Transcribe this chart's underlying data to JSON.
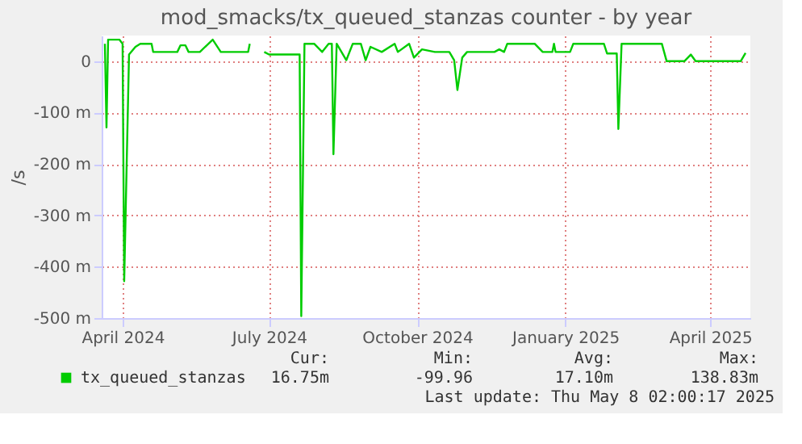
{
  "chart_data": {
    "type": "line",
    "title": "mod_smacks/tx_queued_stanzas counter - by year",
    "ylabel": "/s",
    "x": [
      "2024-03-21",
      "2024-03-22",
      "2024-03-23",
      "2024-03-30",
      "2024-04-01",
      "2024-04-02",
      "2024-04-05",
      "2024-04-09",
      "2024-04-12",
      "2024-04-19",
      "2024-04-20",
      "2024-05-05",
      "2024-05-07",
      "2024-05-10",
      "2024-05-12",
      "2024-05-19",
      "2024-05-27",
      "2024-06-01",
      "2024-06-18",
      "2024-06-19",
      "2024-06-24",
      "2024-06-28",
      "2024-07-01",
      "2024-07-18",
      "2024-07-20",
      "2024-07-21",
      "2024-07-23",
      "2024-07-29",
      "2024-08-03",
      "2024-08-07",
      "2024-08-09",
      "2024-08-10",
      "2024-08-12",
      "2024-08-18",
      "2024-08-22",
      "2024-08-27",
      "2024-08-30",
      "2024-09-02",
      "2024-09-09",
      "2024-09-17",
      "2024-09-19",
      "2024-09-26",
      "2024-09-29",
      "2024-10-04",
      "2024-10-12",
      "2024-10-21",
      "2024-10-24",
      "2024-10-26",
      "2024-10-29",
      "2024-11-01",
      "2024-11-18",
      "2024-11-21",
      "2024-11-24",
      "2024-11-26",
      "2024-12-13",
      "2024-12-18",
      "2024-12-24",
      "2024-12-25",
      "2024-12-26",
      "2025-01-04",
      "2025-01-06",
      "2025-01-25",
      "2025-01-27",
      "2025-02-02",
      "2025-02-03",
      "2025-02-05",
      "2025-03-02",
      "2025-03-05",
      "2025-03-16",
      "2025-03-20",
      "2025-03-23",
      "2025-04-20",
      "2025-04-23"
    ],
    "series": [
      {
        "name": "tx_queued_stanzas",
        "color": "#00cc00",
        "values": [
          34,
          -129,
          42,
          42,
          34,
          -428,
          13,
          28,
          34,
          34,
          18,
          18,
          31,
          31,
          18,
          18,
          42,
          18,
          18,
          34,
          null,
          18,
          13,
          13,
          13,
          -496,
          34,
          34,
          18,
          34,
          34,
          -181,
          34,
          2,
          34,
          34,
          2,
          28,
          18,
          34,
          18,
          34,
          7,
          23,
          18,
          18,
          2,
          -56,
          7,
          18,
          18,
          23,
          18,
          34,
          34,
          18,
          18,
          34,
          18,
          18,
          34,
          34,
          15,
          15,
          -132,
          34,
          34,
          0,
          0,
          13,
          0,
          0,
          16
        ]
      }
    ],
    "ylim": [
      -500,
      50
    ],
    "yticks": [
      {
        "value": -500,
        "label": "-500 m"
      },
      {
        "value": -400,
        "label": "-400 m"
      },
      {
        "value": -300,
        "label": "-300 m"
      },
      {
        "value": -200,
        "label": "-200 m"
      },
      {
        "value": -100,
        "label": "-100 m"
      },
      0
    ],
    "xlim": [
      "2024-03-19",
      "2025-04-26"
    ],
    "xticks": [
      {
        "value": "2024-04-01",
        "label": "April 2024"
      },
      {
        "value": "2024-07-01",
        "label": "July 2024"
      },
      {
        "value": "2024-10-01",
        "label": "October 2024"
      },
      {
        "value": "2025-01-01",
        "label": "January 2025"
      },
      {
        "value": "2025-04-01",
        "label": "April 2025"
      }
    ],
    "grid": true,
    "legend": "bottom",
    "annotations": [
      "Cur:",
      "Min:",
      "Avg:",
      "Max:",
      "16.75m",
      "-99.96",
      "17.10m",
      "138.83m",
      "Last update: Thu May  8 02:00:17 2025"
    ]
  }
}
